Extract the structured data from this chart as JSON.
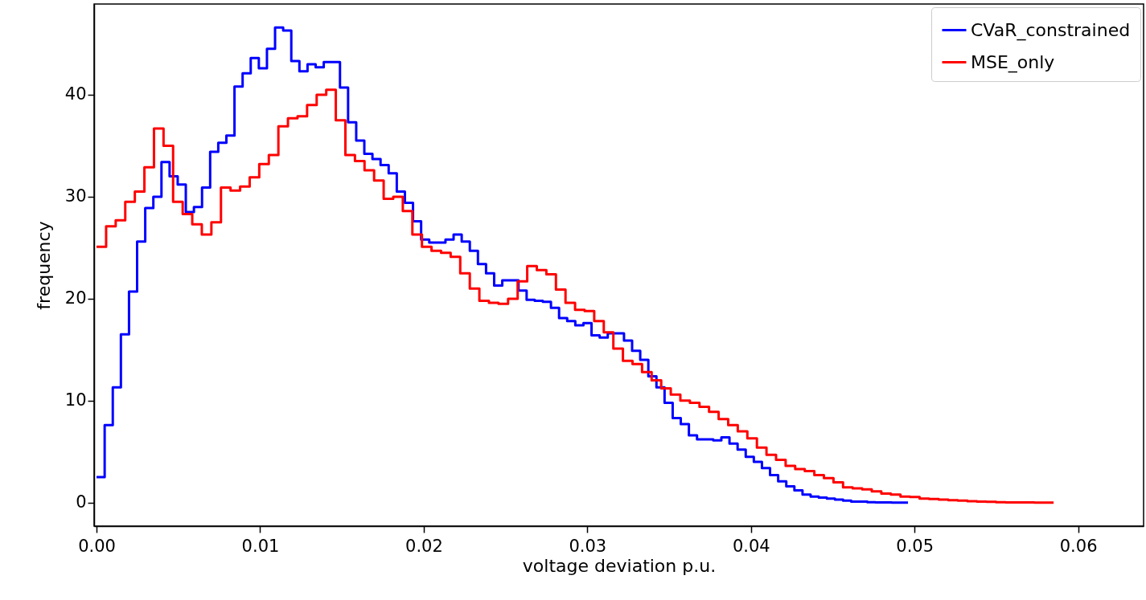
{
  "chart_data": {
    "type": "step",
    "xlabel": "voltage deviation p.u.",
    "ylabel": "frequency",
    "xlim": [
      -0.00015,
      0.064
    ],
    "ylim": [
      -2.3,
      48.9
    ],
    "xticks": [
      {
        "value": 0,
        "label": "0.00"
      },
      0.01,
      0.02,
      0.03,
      0.04,
      0.05,
      0.06
    ],
    "yticks": [
      0,
      10,
      20,
      30,
      40
    ],
    "legend": "top right",
    "grid": false,
    "series": [
      {
        "name": "CVaR_constrained",
        "color": "#0000ff",
        "x": [
          0,
          0.000496,
          0.000992,
          0.001488,
          0.001984,
          0.00248,
          0.002976,
          0.003472,
          0.003968,
          0.004464,
          0.00496,
          0.005456,
          0.005952,
          0.006448,
          0.006944,
          0.00744,
          0.007936,
          0.008432,
          0.008928,
          0.009424,
          0.00992,
          0.010416,
          0.010912,
          0.011408,
          0.011904,
          0.0124,
          0.012896,
          0.013392,
          0.013888,
          0.014384,
          0.01488,
          0.015376,
          0.015872,
          0.016368,
          0.016864,
          0.01736,
          0.017856,
          0.018352,
          0.018848,
          0.019344,
          0.01984,
          0.020336,
          0.020832,
          0.021328,
          0.021824,
          0.02232,
          0.022816,
          0.023312,
          0.023808,
          0.024304,
          0.0248,
          0.025296,
          0.025792,
          0.026288,
          0.026784,
          0.02728,
          0.027776,
          0.028272,
          0.028768,
          0.029264,
          0.02976,
          0.030256,
          0.030752,
          0.031248,
          0.031744,
          0.03224,
          0.032736,
          0.033232,
          0.033728,
          0.034224,
          0.03472,
          0.035216,
          0.035712,
          0.036208,
          0.036704,
          0.0372,
          0.037696,
          0.038192,
          0.038688,
          0.039184,
          0.03968,
          0.040176,
          0.040672,
          0.041168,
          0.041664,
          0.04216,
          0.042656,
          0.043152,
          0.043648,
          0.044144,
          0.04464,
          0.045136,
          0.045632,
          0.046128,
          0.046624,
          0.04712,
          0.047616,
          0.048112,
          0.048608,
          0.049104,
          0.0496
        ],
        "values": [
          2.5,
          7.6,
          11.3,
          16.5,
          20.7,
          25.6,
          28.9,
          30.0,
          33.4,
          32.0,
          31.2,
          28.5,
          29.0,
          30.9,
          34.4,
          35.3,
          36.0,
          40.8,
          42.1,
          43.6,
          42.6,
          44.5,
          46.6,
          46.3,
          43.3,
          42.3,
          43.0,
          42.7,
          43.2,
          43.2,
          40.7,
          37.3,
          35.5,
          34.2,
          33.7,
          33.1,
          32.3,
          30.5,
          29.4,
          27.6,
          25.8,
          25.5,
          25.5,
          25.8,
          26.3,
          25.6,
          24.7,
          23.4,
          22.5,
          21.3,
          21.8,
          21.8,
          20.8,
          19.9,
          19.8,
          19.7,
          19.1,
          18.1,
          17.8,
          17.4,
          17.6,
          16.4,
          16.2,
          16.6,
          16.6,
          15.9,
          14.9,
          14.0,
          12.4,
          11.3,
          9.8,
          8.3,
          7.7,
          6.6,
          6.2,
          6.2,
          6.1,
          6.4,
          5.8,
          5.2,
          4.5,
          4.0,
          3.4,
          2.7,
          2.1,
          1.6,
          1.2,
          0.8,
          0.6,
          0.5,
          0.4,
          0.3,
          0.2,
          0.1,
          0.1,
          0.05,
          0.03,
          0.02,
          0.01,
          0,
          0
        ]
      },
      {
        "name": "MSE_only",
        "color": "#ff0000",
        "x": [
          0,
          0.000585,
          0.00117,
          0.001755,
          0.00234,
          0.002925,
          0.00351,
          0.004095,
          0.00468,
          0.005265,
          0.00585,
          0.006435,
          0.00702,
          0.007605,
          0.00819,
          0.008775,
          0.00936,
          0.009945,
          0.01053,
          0.011115,
          0.0117,
          0.012285,
          0.01287,
          0.013455,
          0.01404,
          0.014625,
          0.01521,
          0.015795,
          0.01638,
          0.016965,
          0.01755,
          0.018135,
          0.01872,
          0.019305,
          0.01989,
          0.020475,
          0.02106,
          0.021645,
          0.02223,
          0.022815,
          0.0234,
          0.023985,
          0.02457,
          0.025155,
          0.02574,
          0.026325,
          0.02691,
          0.027495,
          0.02808,
          0.028665,
          0.02925,
          0.029835,
          0.03042,
          0.031005,
          0.03159,
          0.032175,
          0.03276,
          0.033345,
          0.03393,
          0.034515,
          0.0351,
          0.035685,
          0.03627,
          0.036855,
          0.03744,
          0.038025,
          0.03861,
          0.039195,
          0.03978,
          0.040365,
          0.04095,
          0.041535,
          0.04212,
          0.042705,
          0.04329,
          0.043875,
          0.04446,
          0.045045,
          0.04563,
          0.046215,
          0.0468,
          0.047385,
          0.04797,
          0.048555,
          0.04914,
          0.049725,
          0.05031,
          0.050895,
          0.05148,
          0.052065,
          0.05265,
          0.053235,
          0.05382,
          0.054405,
          0.05499,
          0.055575,
          0.05616,
          0.056745,
          0.05733,
          0.057915,
          0.0585
        ],
        "values": [
          25.1,
          27.1,
          27.7,
          29.5,
          30.5,
          32.9,
          36.7,
          35.0,
          29.5,
          28.3,
          27.3,
          26.3,
          27.5,
          30.9,
          30.6,
          31.0,
          31.9,
          33.2,
          34.1,
          36.9,
          37.7,
          37.9,
          39.0,
          40.0,
          40.5,
          37.5,
          34.1,
          33.5,
          32.6,
          31.6,
          29.8,
          30.0,
          28.6,
          26.3,
          25.1,
          24.7,
          24.5,
          24.1,
          22.5,
          21.0,
          19.8,
          19.6,
          19.5,
          20.0,
          21.7,
          23.2,
          22.8,
          22.4,
          20.9,
          19.6,
          18.9,
          18.8,
          17.8,
          16.7,
          15.1,
          13.9,
          13.6,
          12.8,
          12.0,
          11.2,
          10.6,
          10.0,
          9.8,
          9.4,
          8.9,
          8.2,
          7.6,
          7.0,
          6.3,
          5.4,
          4.7,
          4.2,
          3.6,
          3.3,
          3.1,
          2.7,
          2.4,
          2.0,
          1.5,
          1.4,
          1.3,
          1.1,
          0.9,
          0.8,
          0.6,
          0.55,
          0.4,
          0.35,
          0.3,
          0.25,
          0.2,
          0.15,
          0.1,
          0.08,
          0.05,
          0.03,
          0.03,
          0.02,
          0.01,
          0.01,
          0.01
        ]
      }
    ]
  }
}
